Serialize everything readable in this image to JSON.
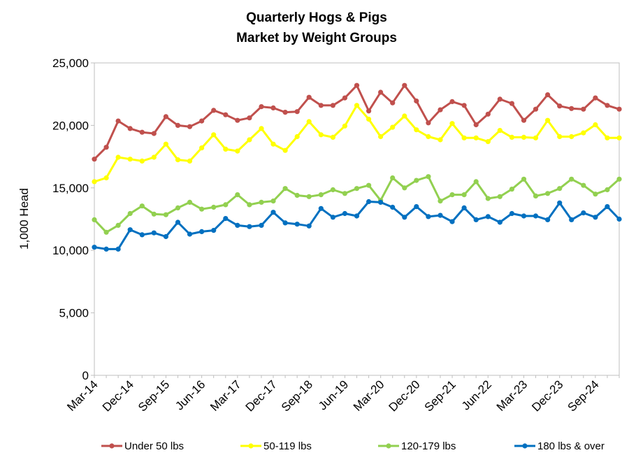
{
  "chart_data": {
    "type": "line",
    "title": "Quarterly Hogs & Pigs",
    "subtitle": "Market by Weight Groups",
    "ylabel": "1,000 Head",
    "xlabel": "",
    "ylim": [
      0,
      25000
    ],
    "yticks": [
      "0",
      "5,000",
      "10,000",
      "15,000",
      "20,000",
      "25,000"
    ],
    "ytick_values": [
      0,
      5000,
      10000,
      15000,
      20000,
      25000
    ],
    "x": [
      "Mar-14",
      "Jun-14",
      "Sep-14",
      "Dec-14",
      "Mar-15",
      "Jun-15",
      "Sep-15",
      "Dec-15",
      "Mar-16",
      "Jun-16",
      "Sep-16",
      "Dec-16",
      "Mar-17",
      "Jun-17",
      "Sep-17",
      "Dec-17",
      "Mar-18",
      "Jun-18",
      "Sep-18",
      "Dec-18",
      "Mar-19",
      "Jun-19",
      "Sep-19",
      "Dec-19",
      "Mar-20",
      "Jun-20",
      "Sep-20",
      "Dec-20",
      "Mar-21",
      "Jun-21",
      "Sep-21",
      "Dec-21",
      "Mar-22",
      "Jun-22",
      "Sep-22",
      "Dec-22",
      "Mar-23",
      "Jun-23",
      "Sep-23",
      "Dec-23",
      "Mar-24",
      "Jun-24",
      "Sep-24",
      "Dec-24",
      "Mar-25"
    ],
    "xtick_labels": [
      "Mar-14",
      "Dec-14",
      "Sep-15",
      "Jun-16",
      "Mar-17",
      "Dec-17",
      "Sep-18",
      "Jun-19",
      "Mar-20",
      "Dec-20",
      "Sep-21",
      "Jun-22",
      "Mar-23",
      "Dec-23",
      "Sep-24"
    ],
    "grid": false,
    "legend_position": "bottom",
    "series": [
      {
        "name": "Under 50 lbs",
        "color": "#c0504d",
        "values": [
          17300,
          18250,
          20350,
          19750,
          19450,
          19350,
          20700,
          20000,
          19900,
          20350,
          21200,
          20850,
          20400,
          20600,
          21500,
          21400,
          21050,
          21100,
          22250,
          21600,
          21600,
          22200,
          23200,
          21150,
          22650,
          21800,
          23200,
          21950,
          20200,
          21250,
          21900,
          21600,
          20050,
          20900,
          22100,
          21750,
          20400,
          21300,
          22450,
          21550,
          21350,
          21300,
          22200,
          21600,
          21300
        ]
      },
      {
        "name": "50-119 lbs",
        "color": "#ffff00",
        "values": [
          15500,
          15800,
          17450,
          17300,
          17150,
          17450,
          18500,
          17250,
          17150,
          18200,
          19250,
          18100,
          17950,
          18850,
          19750,
          18500,
          18000,
          19100,
          20300,
          19250,
          19050,
          19950,
          21600,
          20500,
          19100,
          19850,
          20750,
          19650,
          19100,
          18850,
          20150,
          19000,
          19000,
          18700,
          19600,
          19050,
          19050,
          19000,
          20400,
          19100,
          19100,
          19400,
          20050,
          19000,
          19000
        ]
      },
      {
        "name": "120-179 lbs",
        "color": "#92d050",
        "values": [
          12450,
          11450,
          12000,
          12950,
          13550,
          12900,
          12850,
          13400,
          13850,
          13300,
          13450,
          13650,
          14450,
          13650,
          13850,
          13950,
          14950,
          14400,
          14300,
          14450,
          14850,
          14550,
          14950,
          15200,
          14000,
          15800,
          15000,
          15600,
          15900,
          13950,
          14450,
          14450,
          15500,
          14150,
          14300,
          14900,
          15700,
          14350,
          14550,
          14950,
          15700,
          15200,
          14500,
          14850,
          15700
        ]
      },
      {
        "name": "180 lbs & over",
        "color": "#0070c0",
        "values": [
          10250,
          10100,
          10100,
          11650,
          11250,
          11400,
          11100,
          12250,
          11300,
          11500,
          11600,
          12550,
          12000,
          11900,
          12000,
          13050,
          12200,
          12100,
          11950,
          13350,
          12650,
          12950,
          12750,
          13900,
          13850,
          13450,
          12650,
          13500,
          12700,
          12800,
          12300,
          13400,
          12450,
          12700,
          12250,
          12950,
          12750,
          12750,
          12450,
          13800,
          12450,
          13000,
          12650,
          13500,
          12500
        ]
      }
    ]
  }
}
